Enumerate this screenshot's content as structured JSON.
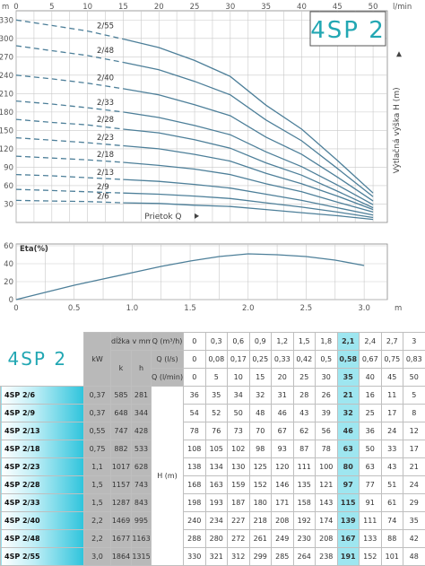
{
  "brand": "4SP 2",
  "chart_data": [
    {
      "type": "line",
      "title": "",
      "xlabel": "Prietok Q",
      "x_unit": "l/min",
      "ylabel": "Výtlačná výška H (m)",
      "y_unit": "m",
      "xlim": [
        0,
        52
      ],
      "ylim": [
        0,
        345
      ],
      "x_ticks": [
        0,
        5,
        10,
        15,
        20,
        25,
        30,
        35,
        40,
        45,
        50
      ],
      "y_ticks": [
        30,
        60,
        90,
        120,
        150,
        180,
        210,
        240,
        270,
        300,
        330
      ],
      "dashed_until_x": 15,
      "x": [
        0,
        5,
        10,
        15,
        20,
        25,
        30,
        35,
        40,
        45,
        50
      ],
      "series": [
        {
          "name": "2/6",
          "values": [
            36,
            35,
            34,
            32,
            31,
            28,
            26,
            21,
            16,
            11,
            5
          ]
        },
        {
          "name": "2/9",
          "values": [
            54,
            52,
            50,
            48,
            46,
            43,
            39,
            32,
            25,
            17,
            8
          ]
        },
        {
          "name": "2/13",
          "values": [
            78,
            76,
            73,
            70,
            67,
            62,
            56,
            46,
            36,
            24,
            12
          ]
        },
        {
          "name": "2/18",
          "values": [
            108,
            105,
            102,
            98,
            93,
            87,
            78,
            63,
            50,
            33,
            17
          ]
        },
        {
          "name": "2/23",
          "values": [
            138,
            134,
            130,
            125,
            120,
            111,
            100,
            80,
            63,
            43,
            21
          ]
        },
        {
          "name": "2/28",
          "values": [
            168,
            163,
            159,
            152,
            146,
            135,
            121,
            97,
            77,
            51,
            24
          ]
        },
        {
          "name": "2/33",
          "values": [
            198,
            193,
            187,
            180,
            171,
            158,
            143,
            115,
            91,
            61,
            29
          ]
        },
        {
          "name": "2/40",
          "values": [
            240,
            234,
            227,
            218,
            208,
            192,
            174,
            139,
            111,
            74,
            35
          ]
        },
        {
          "name": "2/48",
          "values": [
            288,
            280,
            272,
            261,
            249,
            230,
            208,
            167,
            133,
            88,
            42
          ]
        },
        {
          "name": "2/55",
          "values": [
            330,
            321,
            312,
            299,
            285,
            264,
            238,
            191,
            152,
            101,
            48
          ]
        }
      ]
    },
    {
      "type": "line",
      "title": "",
      "ylabel": "Eta(%)",
      "xlabel": "m",
      "xlim": [
        0,
        3.2
      ],
      "ylim": [
        0,
        62
      ],
      "x_ticks": [
        "0",
        "0.5",
        "1.0",
        "1.5",
        "2.0",
        "2.5",
        "3.0"
      ],
      "y_ticks": [
        0,
        20,
        40,
        60
      ],
      "x": [
        0,
        0.25,
        0.5,
        0.75,
        1.0,
        1.25,
        1.5,
        1.75,
        2.0,
        2.25,
        2.5,
        2.75,
        3.0
      ],
      "series": [
        {
          "name": "",
          "values": [
            0,
            8,
            16,
            23,
            30,
            37,
            43,
            48,
            51,
            50,
            48,
            44,
            38
          ]
        }
      ]
    }
  ],
  "table": {
    "kw_header": "kW",
    "len_header": "dĺžka v mm",
    "k_header": "k",
    "h_header": "h",
    "q_headers": [
      "Q (m³/h)",
      "Q (l/s)",
      "Q (l/min)"
    ],
    "h_label": "H (m)",
    "q_m3h": [
      "0",
      "0,3",
      "0,6",
      "0,9",
      "1,2",
      "1,5",
      "1,8",
      "2,1",
      "2,4",
      "2,7",
      "3"
    ],
    "q_ls": [
      "0",
      "0,08",
      "0,17",
      "0,25",
      "0,33",
      "0,42",
      "0,5",
      "0,58",
      "0,67",
      "0,75",
      "0,83"
    ],
    "q_lmin": [
      "0",
      "5",
      "10",
      "15",
      "20",
      "25",
      "30",
      "35",
      "40",
      "45",
      "50"
    ],
    "rows": [
      {
        "name": "4SP 2/6",
        "kw": "0,37",
        "k": "585",
        "h": "281",
        "vals": [
          "36",
          "35",
          "34",
          "32",
          "31",
          "28",
          "26",
          "21",
          "16",
          "11",
          "5"
        ]
      },
      {
        "name": "4SP 2/9",
        "kw": "0,37",
        "k": "648",
        "h": "344",
        "vals": [
          "54",
          "52",
          "50",
          "48",
          "46",
          "43",
          "39",
          "32",
          "25",
          "17",
          "8"
        ]
      },
      {
        "name": "4SP 2/13",
        "kw": "0,55",
        "k": "747",
        "h": "428",
        "vals": [
          "78",
          "76",
          "73",
          "70",
          "67",
          "62",
          "56",
          "46",
          "36",
          "24",
          "12"
        ]
      },
      {
        "name": "4SP 2/18",
        "kw": "0,75",
        "k": "882",
        "h": "533",
        "vals": [
          "108",
          "105",
          "102",
          "98",
          "93",
          "87",
          "78",
          "63",
          "50",
          "33",
          "17"
        ]
      },
      {
        "name": "4SP 2/23",
        "kw": "1,1",
        "k": "1017",
        "h": "628",
        "vals": [
          "138",
          "134",
          "130",
          "125",
          "120",
          "111",
          "100",
          "80",
          "63",
          "43",
          "21"
        ]
      },
      {
        "name": "4SP 2/28",
        "kw": "1,5",
        "k": "1157",
        "h": "743",
        "vals": [
          "168",
          "163",
          "159",
          "152",
          "146",
          "135",
          "121",
          "97",
          "77",
          "51",
          "24"
        ]
      },
      {
        "name": "4SP 2/33",
        "kw": "1,5",
        "k": "1287",
        "h": "843",
        "vals": [
          "198",
          "193",
          "187",
          "180",
          "171",
          "158",
          "143",
          "115",
          "91",
          "61",
          "29"
        ]
      },
      {
        "name": "4SP 2/40",
        "kw": "2,2",
        "k": "1469",
        "h": "995",
        "vals": [
          "240",
          "234",
          "227",
          "218",
          "208",
          "192",
          "174",
          "139",
          "111",
          "74",
          "35"
        ]
      },
      {
        "name": "4SP 2/48",
        "kw": "2,2",
        "k": "1677",
        "h": "1163",
        "vals": [
          "288",
          "280",
          "272",
          "261",
          "249",
          "230",
          "208",
          "167",
          "133",
          "88",
          "42"
        ]
      },
      {
        "name": "4SP 2/55",
        "kw": "3,0",
        "k": "1864",
        "h": "1315",
        "vals": [
          "330",
          "321",
          "312",
          "299",
          "285",
          "264",
          "238",
          "191",
          "152",
          "101",
          "48"
        ]
      }
    ]
  },
  "colors": {
    "curve": "#4d7f99",
    "accent": "#22a7b3",
    "highlight": "#9ee6f0",
    "grid": "#c9c9c9"
  }
}
